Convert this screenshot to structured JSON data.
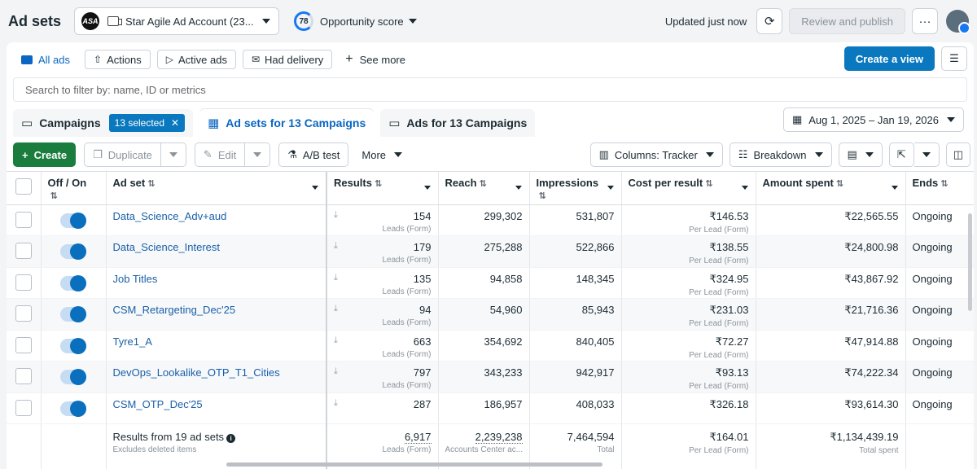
{
  "header": {
    "title": "Ad sets",
    "account_logo": "ASA",
    "account_name": "Star Agile Ad Account (23...",
    "opportunity_score": "78",
    "opportunity_label": "Opportunity score",
    "updated": "Updated just now",
    "review_publish": "Review and publish",
    "more": "···"
  },
  "views": {
    "all_ads": "All ads",
    "actions": "Actions",
    "active_ads": "Active ads",
    "had_delivery": "Had delivery",
    "see_more": "See more",
    "create_view": "Create a view"
  },
  "search": {
    "placeholder": "Search to filter by: name, ID or metrics"
  },
  "tabs": {
    "campaigns": "Campaigns",
    "selected_badge": "13 selected",
    "adsets": "Ad sets for 13 Campaigns",
    "ads": "Ads for 13 Campaigns"
  },
  "date_range": "Aug 1, 2025 – Jan 19, 2026",
  "toolbar": {
    "create": "Create",
    "duplicate": "Duplicate",
    "edit": "Edit",
    "ab_test": "A/B test",
    "more": "More",
    "columns": "Columns: Tracker",
    "breakdown": "Breakdown"
  },
  "columns": {
    "offon": "Off / On",
    "adset": "Ad set",
    "results": "Results",
    "reach": "Reach",
    "impressions": "Impressions",
    "cost": "Cost per result",
    "spent": "Amount spent",
    "ends": "Ends"
  },
  "rows": [
    {
      "name": "Data_Science_Adv+aud",
      "results": "154",
      "results_sub": "Leads (Form)",
      "reach": "299,302",
      "impressions": "531,807",
      "cost": "₹146.53",
      "cost_sub": "Per Lead (Form)",
      "spent": "₹22,565.55",
      "ends": "Ongoing"
    },
    {
      "name": "Data_Science_Interest",
      "results": "179",
      "results_sub": "Leads (Form)",
      "reach": "275,288",
      "impressions": "522,866",
      "cost": "₹138.55",
      "cost_sub": "Per Lead (Form)",
      "spent": "₹24,800.98",
      "ends": "Ongoing"
    },
    {
      "name": "Job Titles",
      "results": "135",
      "results_sub": "Leads (Form)",
      "reach": "94,858",
      "impressions": "148,345",
      "cost": "₹324.95",
      "cost_sub": "Per Lead (Form)",
      "spent": "₹43,867.92",
      "ends": "Ongoing"
    },
    {
      "name": "CSM_Retargeting_Dec'25",
      "results": "94",
      "results_sub": "Leads (Form)",
      "reach": "54,960",
      "impressions": "85,943",
      "cost": "₹231.03",
      "cost_sub": "Per Lead (Form)",
      "spent": "₹21,716.36",
      "ends": "Ongoing"
    },
    {
      "name": "Tyre1_A",
      "results": "663",
      "results_sub": "Leads (Form)",
      "reach": "354,692",
      "impressions": "840,405",
      "cost": "₹72.27",
      "cost_sub": "Per Lead (Form)",
      "spent": "₹47,914.88",
      "ends": "Ongoing"
    },
    {
      "name": "DevOps_Lookalike_OTP_T1_Cities",
      "results": "797",
      "results_sub": "Leads (Form)",
      "reach": "343,233",
      "impressions": "942,917",
      "cost": "₹93.13",
      "cost_sub": "Per Lead (Form)",
      "spent": "₹74,222.34",
      "ends": "Ongoing"
    },
    {
      "name": "CSM_OTP_Dec'25",
      "results": "287",
      "results_sub": "",
      "reach": "186,957",
      "impressions": "408,033",
      "cost": "₹326.18",
      "cost_sub": "",
      "spent": "₹93,614.30",
      "ends": "Ongoing"
    }
  ],
  "totals": {
    "label": "Results from 19 ad sets",
    "sub": "Excludes deleted items",
    "results": "6,917",
    "results_sub": "Leads (Form)",
    "reach": "2,239,238",
    "reach_sub": "Accounts Center ac...",
    "impressions": "7,464,594",
    "impressions_sub": "Total",
    "cost": "₹164.01",
    "cost_sub": "Per Lead (Form)",
    "spent": "₹1,134,439.19",
    "spent_sub": "Total spent"
  }
}
